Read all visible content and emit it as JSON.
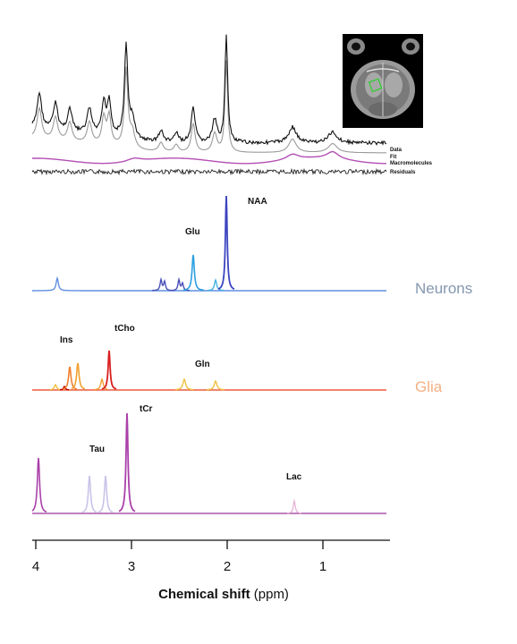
{
  "figure": {
    "legend": {
      "data": "Data",
      "fit": "Fit",
      "macromolecules": "Macromolecules",
      "residuals": "Residuals"
    },
    "metabolites": {
      "naa": "NAA",
      "glu": "Glu",
      "ins": "Ins",
      "tcho": "tCho",
      "gln": "Gln",
      "tcr": "tCr",
      "tau": "Tau",
      "lac": "Lac"
    },
    "groups": {
      "neurons": {
        "label": "Neurons",
        "color": "#8497b0"
      },
      "glia": {
        "label": "Glia",
        "color": "#f4b183"
      }
    },
    "xaxis": {
      "title_bold": "Chemical shift",
      "title_unit": " (ppm)",
      "ticks": [
        {
          "ppm": 4,
          "label": "4"
        },
        {
          "ppm": 3,
          "label": "3"
        },
        {
          "ppm": 2,
          "label": "2"
        },
        {
          "ppm": 1,
          "label": "1"
        }
      ],
      "range": [
        4.03,
        0.35
      ],
      "reversed": true
    },
    "colors": {
      "data": "#111111",
      "fit": "#9a9a9a",
      "macromolecules": "#b44fb4",
      "neurons_baseline": "#5060d0",
      "glia_baseline": "#ee5a3c",
      "bottom_baseline": "#aa55aa"
    }
  }
}
